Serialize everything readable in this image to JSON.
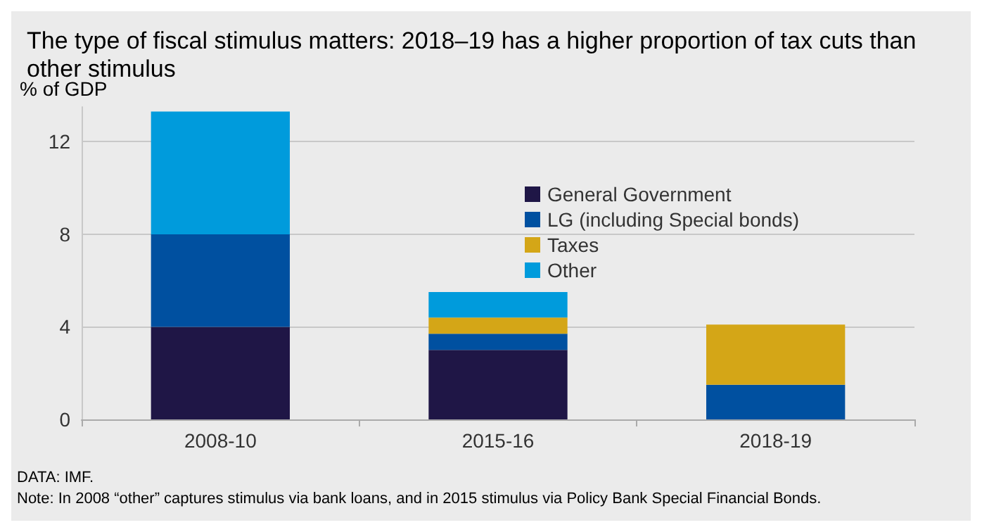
{
  "chart_data": {
    "type": "bar",
    "title": "The type of fiscal stimulus matters: 2018–19 has a higher proportion of tax cuts than other stimulus",
    "ylabel": "% of GDP",
    "categories": [
      "2008-10",
      "2015-16",
      "2018-19"
    ],
    "stacked": true,
    "series": [
      {
        "name": "General Government",
        "color": "#1f1646",
        "values": [
          4,
          3,
          null
        ]
      },
      {
        "name": "LG (including Special bonds)",
        "color": "#0050a0",
        "values": [
          4,
          0.7,
          1.5
        ]
      },
      {
        "name": "Taxes",
        "color": "#d4a617",
        "values": [
          null,
          0.7,
          2.6
        ]
      },
      {
        "name": "Other",
        "color": "#009bdc",
        "values": [
          5.3,
          1.1,
          null
        ]
      }
    ],
    "ylim": [
      0,
      13.5
    ],
    "yticks": [
      0,
      4,
      8,
      12
    ],
    "grid": "y",
    "legend": "top right",
    "annotations": [
      "DATA: IMF.",
      "Note: In 2008 “other” captures stimulus via bank loans, and in 2015 stimulus via Policy Bank Special Financial Bonds."
    ]
  }
}
